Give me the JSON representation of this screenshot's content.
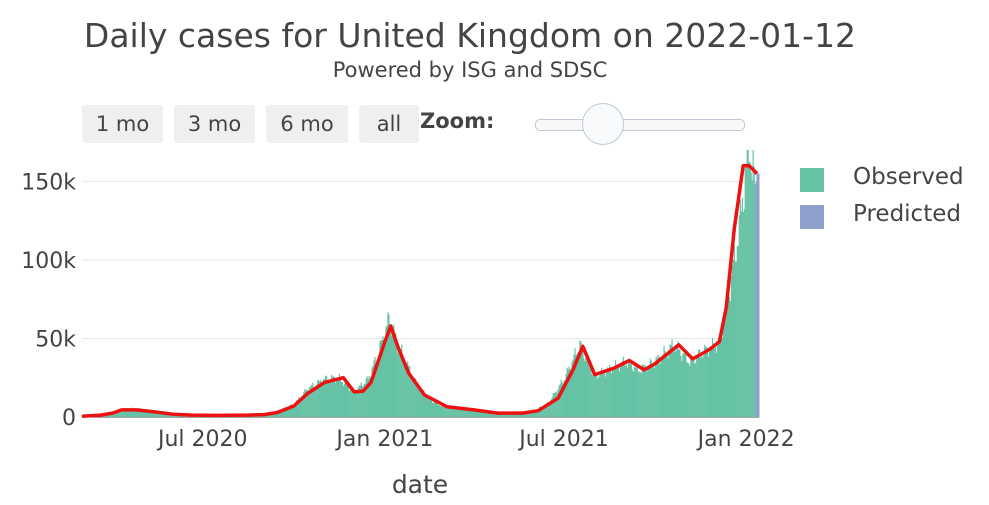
{
  "title": "Daily cases for United Kingdom on 2022-01-12",
  "subtitle": "Powered by ISG and SDSC",
  "range_buttons": [
    "1 mo",
    "3 mo",
    "6 mo",
    "all"
  ],
  "zoom_label": "Zoom:",
  "legend": [
    {
      "label": "Observed",
      "color": "#66c2a5"
    },
    {
      "label": "Predicted",
      "color": "#8da0cb"
    }
  ],
  "chart_data": {
    "type": "bar",
    "xlabel": "date",
    "ylabel": "",
    "x_range": [
      "2020-03-01",
      "2022-01-14"
    ],
    "ylim": [
      0,
      170000
    ],
    "y_ticks": [
      0,
      50000,
      100000,
      150000
    ],
    "y_tick_labels": [
      "0",
      "50k",
      "100k",
      "150k"
    ],
    "x_ticks": [
      "2020-07-01",
      "2021-01-01",
      "2021-07-01",
      "2022-01-01"
    ],
    "x_tick_labels": [
      "Jul 2020",
      "Jan 2021",
      "Jul 2021",
      "Jan 2022"
    ],
    "grid": true,
    "legend_position": "top-right",
    "colors": {
      "observed": "#66c2a5",
      "predicted": "#8da0cb",
      "trend": "#ee1111"
    },
    "series": [
      {
        "name": "Observed",
        "kind": "bar",
        "points": [
          [
            "2020-03-01",
            500
          ],
          [
            "2020-03-20",
            1500
          ],
          [
            "2020-04-01",
            3000
          ],
          [
            "2020-04-15",
            5500
          ],
          [
            "2020-05-01",
            5000
          ],
          [
            "2020-05-15",
            3000
          ],
          [
            "2020-06-01",
            1800
          ],
          [
            "2020-06-15",
            1200
          ],
          [
            "2020-07-01",
            800
          ],
          [
            "2020-07-15",
            700
          ],
          [
            "2020-08-01",
            900
          ],
          [
            "2020-08-15",
            1200
          ],
          [
            "2020-09-01",
            1800
          ],
          [
            "2020-09-15",
            4000
          ],
          [
            "2020-10-01",
            8000
          ],
          [
            "2020-10-15",
            18000
          ],
          [
            "2020-11-01",
            24000
          ],
          [
            "2020-11-15",
            25000
          ],
          [
            "2020-12-01",
            16000
          ],
          [
            "2020-12-15",
            24000
          ],
          [
            "2020-12-25",
            40000
          ],
          [
            "2021-01-05",
            62000
          ],
          [
            "2021-01-15",
            45000
          ],
          [
            "2021-02-01",
            22000
          ],
          [
            "2021-02-15",
            11000
          ],
          [
            "2021-03-01",
            6500
          ],
          [
            "2021-03-15",
            5500
          ],
          [
            "2021-04-01",
            4000
          ],
          [
            "2021-04-15",
            2500
          ],
          [
            "2021-05-01",
            2200
          ],
          [
            "2021-05-15",
            2500
          ],
          [
            "2021-06-01",
            4000
          ],
          [
            "2021-06-15",
            9000
          ],
          [
            "2021-07-01",
            24000
          ],
          [
            "2021-07-17",
            46000
          ],
          [
            "2021-08-01",
            26000
          ],
          [
            "2021-08-15",
            30000
          ],
          [
            "2021-09-01",
            35000
          ],
          [
            "2021-09-15",
            30000
          ],
          [
            "2021-10-01",
            35000
          ],
          [
            "2021-10-20",
            46000
          ],
          [
            "2021-11-05",
            35000
          ],
          [
            "2021-11-20",
            42000
          ],
          [
            "2021-12-05",
            47000
          ],
          [
            "2021-12-15",
            80000
          ],
          [
            "2021-12-25",
            120000
          ],
          [
            "2022-01-04",
            175000
          ],
          [
            "2022-01-10",
            145000
          ]
        ]
      },
      {
        "name": "Predicted",
        "kind": "bar",
        "points": [
          [
            "2022-01-11",
            150000
          ],
          [
            "2022-01-12",
            155000
          ]
        ]
      },
      {
        "name": "",
        "kind": "line",
        "points": [
          [
            "2020-03-01",
            500
          ],
          [
            "2020-03-20",
            1200
          ],
          [
            "2020-04-01",
            2500
          ],
          [
            "2020-04-10",
            4500
          ],
          [
            "2020-04-25",
            4500
          ],
          [
            "2020-05-10",
            3500
          ],
          [
            "2020-06-01",
            1800
          ],
          [
            "2020-06-20",
            1200
          ],
          [
            "2020-07-15",
            1000
          ],
          [
            "2020-08-15",
            1200
          ],
          [
            "2020-09-01",
            1500
          ],
          [
            "2020-09-15",
            3000
          ],
          [
            "2020-10-01",
            7000
          ],
          [
            "2020-10-15",
            15000
          ],
          [
            "2020-11-01",
            22000
          ],
          [
            "2020-11-20",
            25000
          ],
          [
            "2020-12-01",
            16000
          ],
          [
            "2020-12-10",
            16500
          ],
          [
            "2020-12-18",
            22000
          ],
          [
            "2021-01-01",
            48000
          ],
          [
            "2021-01-07",
            58000
          ],
          [
            "2021-01-14",
            45000
          ],
          [
            "2021-01-25",
            28000
          ],
          [
            "2021-02-10",
            14000
          ],
          [
            "2021-03-05",
            6500
          ],
          [
            "2021-04-01",
            4500
          ],
          [
            "2021-04-25",
            2500
          ],
          [
            "2021-05-20",
            2500
          ],
          [
            "2021-06-05",
            4000
          ],
          [
            "2021-06-25",
            12000
          ],
          [
            "2021-07-10",
            30000
          ],
          [
            "2021-07-20",
            45000
          ],
          [
            "2021-08-01",
            27000
          ],
          [
            "2021-08-20",
            31000
          ],
          [
            "2021-09-05",
            36000
          ],
          [
            "2021-09-20",
            30000
          ],
          [
            "2021-10-01",
            34000
          ],
          [
            "2021-10-25",
            46000
          ],
          [
            "2021-11-08",
            37000
          ],
          [
            "2021-11-25",
            43000
          ],
          [
            "2021-12-05",
            48000
          ],
          [
            "2021-12-12",
            70000
          ],
          [
            "2021-12-20",
            120000
          ],
          [
            "2021-12-29",
            160000
          ],
          [
            "2022-01-04",
            160000
          ],
          [
            "2022-01-12",
            155000
          ]
        ]
      }
    ]
  }
}
